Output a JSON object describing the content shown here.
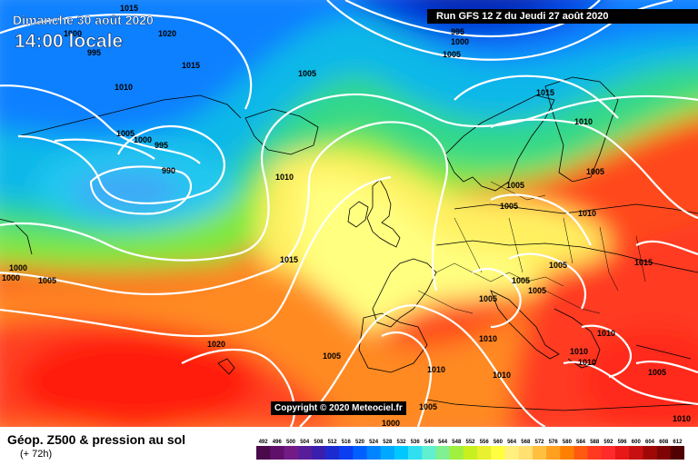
{
  "header": {
    "date": "Dimanche 30 août 2020",
    "time": "14:00 locale",
    "run": "Run GFS 12 Z du Jeudi 27 août 2020"
  },
  "copyright": "Copyright © 2020 Meteociel.fr",
  "footer": {
    "product": "Géop. Z500 & pression au sol",
    "lead": "(+ 72h)"
  },
  "isobar_labels": [
    "1015",
    "1020",
    "1010",
    "1005",
    "1000",
    "995",
    "990",
    "995",
    "1000",
    "1005",
    "1005",
    "1010",
    "1015",
    "1010",
    "1005",
    "1005",
    "1010",
    "1015",
    "1005",
    "1005",
    "1005",
    "1010",
    "1000",
    "1000",
    "1005",
    "1015",
    "1020",
    "1010",
    "1010",
    "1005",
    "1005",
    "1010",
    "1010",
    "1010",
    "1005",
    "1000",
    "1005",
    "1000",
    "995",
    "1015",
    "1005",
    "1010"
  ],
  "scale": {
    "values": [
      "492",
      "496",
      "500",
      "504",
      "508",
      "512",
      "516",
      "520",
      "524",
      "528",
      "532",
      "536",
      "540",
      "544",
      "548",
      "552",
      "556",
      "560",
      "564",
      "568",
      "572",
      "576",
      "580",
      "584",
      "588",
      "592",
      "596",
      "600",
      "604",
      "608",
      "612"
    ],
    "colors": [
      "#4b0a4b",
      "#60106a",
      "#731a86",
      "#5a1d99",
      "#3a1faf",
      "#1c2bd0",
      "#0a3ef0",
      "#0060ff",
      "#0084ff",
      "#00a8ff",
      "#00c8ff",
      "#30e0f0",
      "#60f0d0",
      "#80f090",
      "#a0f040",
      "#c8f020",
      "#e8f030",
      "#ffff40",
      "#fff080",
      "#ffe070",
      "#ffc040",
      "#ffa020",
      "#ff8000",
      "#ff5a10",
      "#ff3a20",
      "#ff2a2a",
      "#e81818",
      "#c81010",
      "#a00808",
      "#800404",
      "#500000"
    ]
  }
}
